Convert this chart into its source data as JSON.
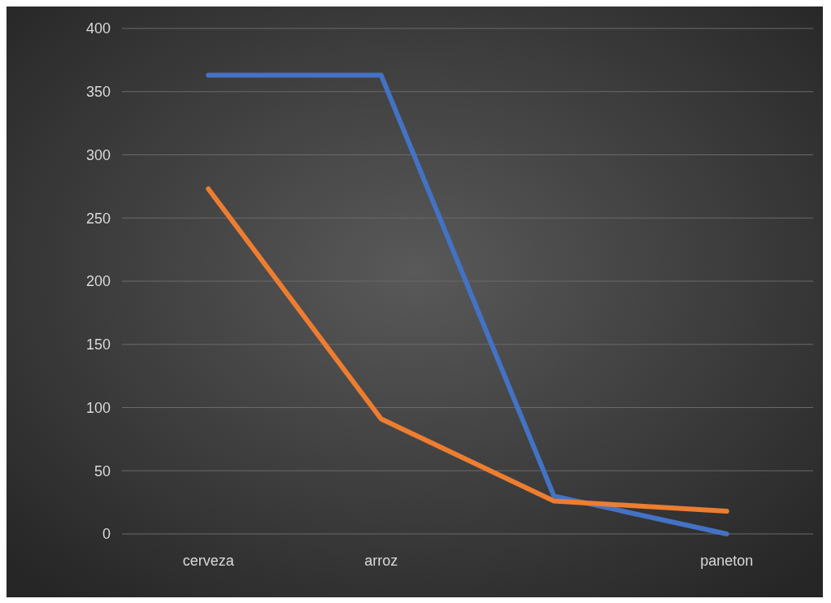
{
  "chart_data": {
    "type": "line",
    "categories": [
      "cerveza",
      "arroz",
      null,
      "paneton"
    ],
    "series": [
      {
        "color": "#4472c4",
        "values": [
          363,
          363,
          30,
          0
        ]
      },
      {
        "color": "#ed7d31",
        "values": [
          273,
          91,
          26,
          18
        ]
      }
    ],
    "ylim": [
      0,
      400
    ],
    "yticks": [
      0,
      50,
      100,
      150,
      200,
      250,
      300,
      350,
      400
    ],
    "grid": "y",
    "marker": "none",
    "line_style": "solid"
  }
}
